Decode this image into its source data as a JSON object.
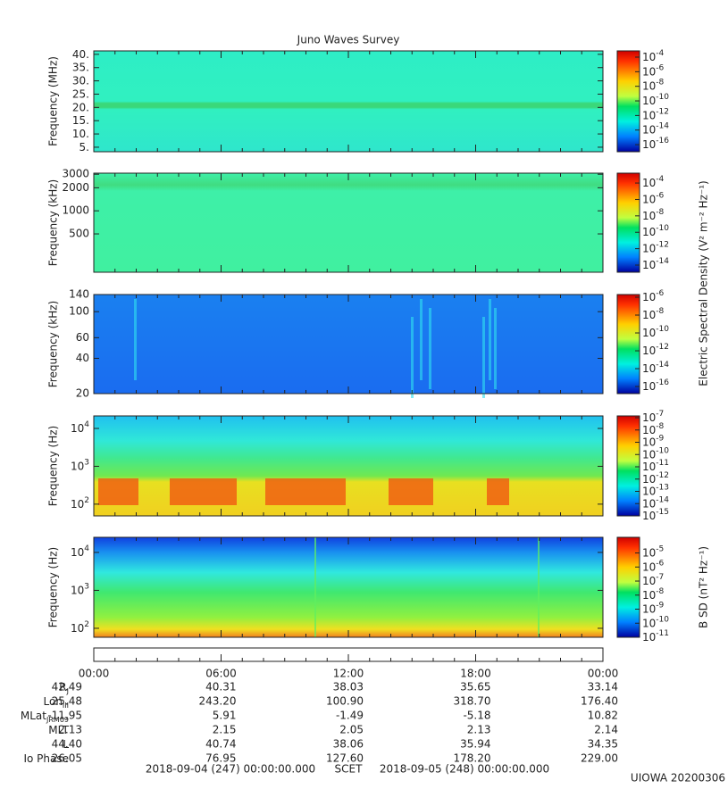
{
  "chart_data": [
    {
      "type": "spectrogram",
      "title": "Juno Waves Survey",
      "ylabel": "Frequency (MHz)",
      "log": false,
      "ylim": [
        3.3,
        41.3
      ],
      "yticks": [
        {
          "value": 5,
          "label": "5."
        },
        {
          "value": 10,
          "label": "10."
        },
        {
          "value": 15,
          "label": "15."
        },
        {
          "value": 20,
          "label": "20."
        },
        {
          "value": 25,
          "label": "25."
        },
        {
          "value": 30,
          "label": "30."
        },
        {
          "value": 35,
          "label": "35."
        },
        {
          "value": 40,
          "label": "40."
        }
      ],
      "clim": [
        1.07e-17,
        0.00072
      ],
      "cticks": [
        {
          "value": 0.0001,
          "label": "10",
          "sup": "-4"
        },
        {
          "value": 1e-06,
          "label": "10",
          "sup": "-6"
        },
        {
          "value": 1e-08,
          "label": "10",
          "sup": "-8"
        },
        {
          "value": 1e-10,
          "label": "10",
          "sup": "-10"
        },
        {
          "value": 1e-12,
          "label": "10",
          "sup": "-12"
        },
        {
          "value": 1e-14,
          "label": "10",
          "sup": "-14"
        },
        {
          "value": 1e-16,
          "label": "10",
          "sup": "-16"
        }
      ]
    },
    {
      "type": "spectrogram",
      "ylabel": "Frequency (kHz)",
      "log": true,
      "ylim": [
        158,
        3100
      ],
      "yticks": [
        500,
        1000,
        2000,
        3000
      ],
      "clim": [
        1.35e-15,
        0.0016
      ],
      "cticks": [
        {
          "value": 0.0001,
          "label": "10",
          "sup": "-4"
        },
        {
          "value": 1e-06,
          "label": "10",
          "sup": "-6"
        },
        {
          "value": 1e-08,
          "label": "10",
          "sup": "-8"
        },
        {
          "value": 1e-10,
          "label": "10",
          "sup": "-10"
        },
        {
          "value": 1e-12,
          "label": "10",
          "sup": "-12"
        },
        {
          "value": 1e-14,
          "label": "10",
          "sup": "-14"
        }
      ],
      "colorbar_label": "Electric Spectral Density (V² m⁻² Hz⁻¹)"
    },
    {
      "type": "spectrogram",
      "ylabel": "Frequency (kHz)",
      "log": true,
      "ylim": [
        20,
        140
      ],
      "yticks": [
        20,
        40,
        60,
        100,
        140
      ],
      "clim": [
        1.6e-17,
        2e-06
      ],
      "cticks": [
        {
          "value": 1e-06,
          "label": "10",
          "sup": "-6"
        },
        {
          "value": 1e-08,
          "label": "10",
          "sup": "-8"
        },
        {
          "value": 1e-10,
          "label": "10",
          "sup": "-10"
        },
        {
          "value": 1e-12,
          "label": "10",
          "sup": "-12"
        },
        {
          "value": 1e-14,
          "label": "10",
          "sup": "-14"
        },
        {
          "value": 1e-16,
          "label": "10",
          "sup": "-16"
        }
      ]
    },
    {
      "type": "spectrogram",
      "ylabel": "Frequency (Hz)",
      "log": true,
      "ylim": [
        49,
        21400
      ],
      "yticks": [
        {
          "value": 100,
          "label": "10",
          "sup": "2"
        },
        {
          "value": 1000,
          "label": "10",
          "sup": "3"
        },
        {
          "value": 10000,
          "label": "10",
          "sup": "4"
        }
      ],
      "clim": [
        1e-15,
        1.4e-07
      ],
      "cticks": [
        {
          "value": 1e-07,
          "label": "10",
          "sup": "-7"
        },
        {
          "value": 1e-08,
          "label": "10",
          "sup": "-8"
        },
        {
          "value": 1e-09,
          "label": "10",
          "sup": "-9"
        },
        {
          "value": 1e-10,
          "label": "10",
          "sup": "-10"
        },
        {
          "value": 1e-11,
          "label": "10",
          "sup": "-11"
        },
        {
          "value": 1e-12,
          "label": "10",
          "sup": "-12"
        },
        {
          "value": 1e-13,
          "label": "10",
          "sup": "-13"
        },
        {
          "value": 1e-14,
          "label": "10",
          "sup": "-14"
        },
        {
          "value": 1e-15,
          "label": "10",
          "sup": "-15"
        }
      ]
    },
    {
      "type": "spectrogram",
      "ylabel": "Frequency (Hz)",
      "log": true,
      "ylim": [
        58,
        25000
      ],
      "yticks": [
        {
          "value": 100,
          "label": "10",
          "sup": "2"
        },
        {
          "value": 1000,
          "label": "10",
          "sup": "3"
        },
        {
          "value": 10000,
          "label": "10",
          "sup": "4"
        }
      ],
      "clim": [
        1e-11,
        0.00013
      ],
      "cticks": [
        {
          "value": 1e-05,
          "label": "10",
          "sup": "-5"
        },
        {
          "value": 1e-06,
          "label": "10",
          "sup": "-6"
        },
        {
          "value": 1e-07,
          "label": "10",
          "sup": "-7"
        },
        {
          "value": 1e-08,
          "label": "10",
          "sup": "-8"
        },
        {
          "value": 1e-09,
          "label": "10",
          "sup": "-9"
        },
        {
          "value": 1e-10,
          "label": "10",
          "sup": "-10"
        },
        {
          "value": 1e-11,
          "label": "10",
          "sup": "-11"
        }
      ],
      "colorbar_label": "B SD (nT² Hz⁻¹)"
    }
  ],
  "time_ticks": [
    "00:00",
    "06:00",
    "12:00",
    "18:00",
    "00:00"
  ],
  "ephemeris": [
    {
      "name": "R",
      "sub": "J",
      "values": [
        "42.49",
        "40.31",
        "38.03",
        "35.65",
        "33.14"
      ]
    },
    {
      "name": "Lon",
      "sub": "III",
      "values": [
        "25.48",
        "243.20",
        "100.90",
        "318.70",
        "176.40"
      ]
    },
    {
      "name": "MLat",
      "sub": "JRM09",
      "values": [
        "-11.95",
        "5.91",
        "-1.49",
        "-5.18",
        "10.82"
      ]
    },
    {
      "name": "MLT",
      "values": [
        "2.13",
        "2.15",
        "2.05",
        "2.13",
        "2.14"
      ]
    },
    {
      "name": "L",
      "values": [
        "44.40",
        "40.74",
        "38.06",
        "35.94",
        "34.35"
      ]
    },
    {
      "name": "Io Phase",
      "values": [
        "26.05",
        "76.95",
        "127.60",
        "178.20",
        "229.00"
      ]
    }
  ],
  "footer": {
    "start": "2018-09-04 (247) 00:00:00.000",
    "scet": "SCET",
    "end": "2018-09-05 (248) 00:00:00.000"
  },
  "stamp": "UIOWA 20200306"
}
